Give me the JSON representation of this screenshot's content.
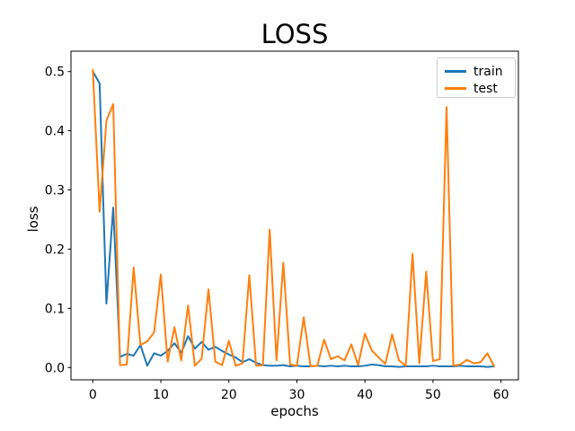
{
  "figure": {
    "background": "#ffffff",
    "frame_color": "#000000"
  },
  "chart_data": {
    "type": "line",
    "title": "LOSS",
    "xlabel": "epochs",
    "ylabel": "loss",
    "grid": false,
    "legend": {
      "position": "upper right",
      "entries": [
        "train",
        "test"
      ]
    },
    "xlim": [
      -3.21,
      62.56
    ],
    "ylim": [
      -0.0208,
      0.5344
    ],
    "xticks": [
      0,
      10,
      20,
      30,
      40,
      50,
      60
    ],
    "xtick_labels": [
      "0",
      "10",
      "20",
      "30",
      "40",
      "50",
      "60"
    ],
    "yticks": [
      0.0,
      0.1,
      0.2,
      0.3,
      0.4,
      0.5
    ],
    "ytick_labels": [
      "0.0",
      "0.1",
      "0.2",
      "0.3",
      "0.4",
      "0.5"
    ],
    "x": [
      0,
      1,
      2,
      3,
      4,
      5,
      6,
      7,
      8,
      9,
      10,
      11,
      12,
      13,
      14,
      15,
      16,
      17,
      18,
      19,
      20,
      21,
      22,
      23,
      24,
      25,
      26,
      27,
      28,
      29,
      30,
      31,
      32,
      33,
      34,
      35,
      36,
      37,
      38,
      39,
      40,
      41,
      42,
      43,
      44,
      45,
      46,
      47,
      48,
      49,
      50,
      51,
      52,
      53,
      54,
      55,
      56,
      57,
      58,
      59
    ],
    "series": [
      {
        "name": "train",
        "color": "#1f77b4",
        "values": [
          0.5,
          0.48,
          0.108,
          0.27,
          0.018,
          0.023,
          0.02,
          0.038,
          0.003,
          0.024,
          0.02,
          0.028,
          0.041,
          0.025,
          0.053,
          0.032,
          0.043,
          0.03,
          0.035,
          0.028,
          0.022,
          0.017,
          0.009,
          0.014,
          0.008,
          0.004,
          0.003,
          0.003,
          0.004,
          0.002,
          0.003,
          0.002,
          0.002,
          0.003,
          0.002,
          0.003,
          0.002,
          0.003,
          0.002,
          0.002,
          0.003,
          0.005,
          0.004,
          0.002,
          0.002,
          0.001,
          0.002,
          0.002,
          0.002,
          0.002,
          0.003,
          0.002,
          0.002,
          0.002,
          0.003,
          0.002,
          0.002,
          0.002,
          0.001,
          0.002
        ]
      },
      {
        "name": "test",
        "color": "#ff7f0e",
        "values": [
          0.503,
          0.263,
          0.417,
          0.445,
          0.004,
          0.005,
          0.169,
          0.038,
          0.044,
          0.059,
          0.157,
          0.01,
          0.068,
          0.012,
          0.105,
          0.003,
          0.015,
          0.132,
          0.01,
          0.004,
          0.045,
          0.003,
          0.007,
          0.156,
          0.003,
          0.004,
          0.233,
          0.012,
          0.177,
          0.005,
          0.003,
          0.085,
          0.002,
          0.003,
          0.047,
          0.014,
          0.019,
          0.012,
          0.039,
          0.004,
          0.057,
          0.029,
          0.017,
          0.006,
          0.056,
          0.012,
          0.003,
          0.192,
          0.007,
          0.162,
          0.011,
          0.014,
          0.44,
          0.003,
          0.005,
          0.013,
          0.007,
          0.009,
          0.024,
          0.002
        ]
      }
    ]
  }
}
